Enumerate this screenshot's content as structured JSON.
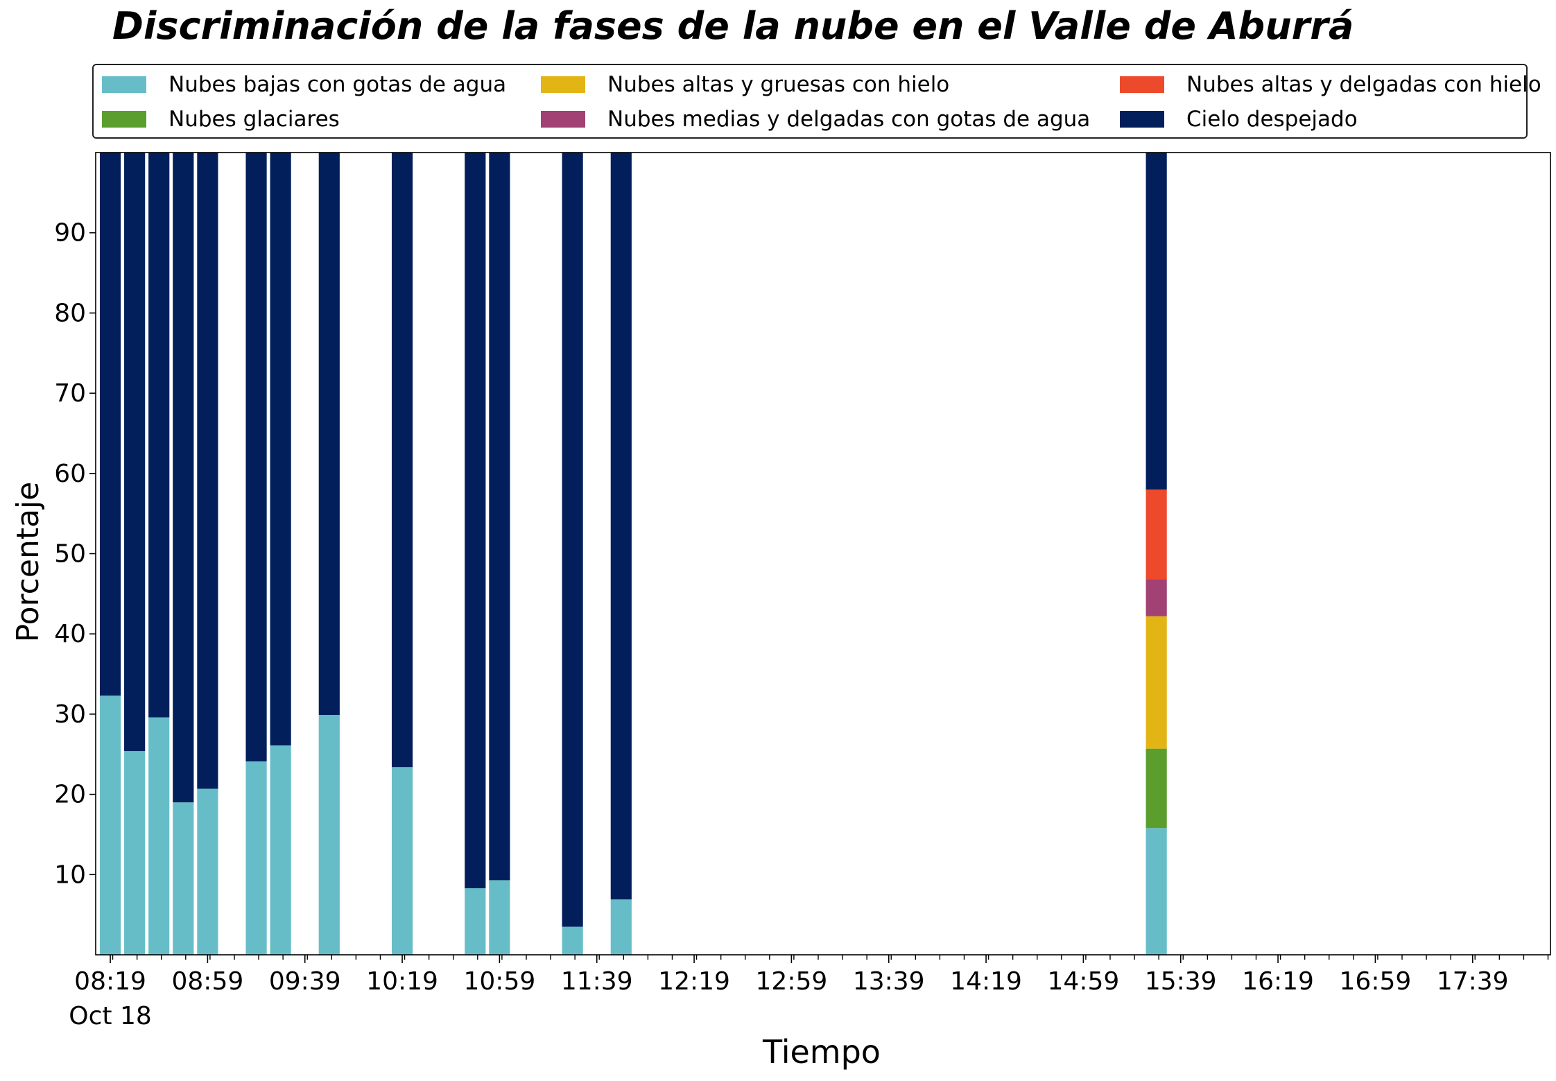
{
  "chart_data": {
    "type": "bar",
    "stacked": true,
    "title": "Discriminación de la fases de la nube en el Valle de Aburrá",
    "xlabel": "Tiempo",
    "ylabel": "Porcentaje",
    "ylim": [
      0,
      100
    ],
    "yticks": [
      10,
      20,
      30,
      40,
      50,
      60,
      70,
      80,
      90
    ],
    "x_range": [
      "08:13",
      "18:11"
    ],
    "x_tick_labels": [
      "08:19",
      "08:59",
      "09:39",
      "10:19",
      "10:59",
      "11:39",
      "12:19",
      "12:59",
      "13:39",
      "14:19",
      "14:59",
      "15:39",
      "16:19",
      "16:59",
      "17:39"
    ],
    "x_date_label": "Oct 18",
    "legend_position": "top",
    "grid": false,
    "x": [
      "08:19",
      "08:29",
      "08:39",
      "08:49",
      "08:59",
      "09:19",
      "09:29",
      "09:49",
      "10:19",
      "10:49",
      "10:59",
      "11:29",
      "11:49",
      "15:29"
    ],
    "series": [
      {
        "name": "Nubes bajas con gotas de agua",
        "color": "#66bdc8",
        "values": [
          32.3,
          25.4,
          29.6,
          19.0,
          20.7,
          24.1,
          26.1,
          29.9,
          23.4,
          8.3,
          9.3,
          3.5,
          6.9,
          15.8
        ]
      },
      {
        "name": "Nubes glaciares",
        "color": "#5c9e2e",
        "values": [
          0,
          0,
          0,
          0,
          0,
          0,
          0,
          0,
          0,
          0,
          0,
          0,
          0,
          9.9
        ]
      },
      {
        "name": "Nubes altas y gruesas con hielo",
        "color": "#e3b514",
        "values": [
          0,
          0,
          0,
          0,
          0,
          0,
          0,
          0,
          0,
          0,
          0,
          0,
          0,
          16.5
        ]
      },
      {
        "name": "Nubes medias y delgadas con gotas de agua",
        "color": "#a24174",
        "values": [
          0,
          0,
          0,
          0,
          0,
          0,
          0,
          0,
          0,
          0,
          0,
          0,
          0,
          4.6
        ]
      },
      {
        "name": "Nubes altas y delgadas con hielo",
        "color": "#ed4a2b",
        "values": [
          0,
          0,
          0,
          0,
          0,
          0,
          0,
          0,
          0,
          0,
          0,
          0,
          0,
          11.2
        ]
      },
      {
        "name": "Cielo despejado",
        "color": "#021f5c",
        "values": [
          67.7,
          74.6,
          70.4,
          81.0,
          79.3,
          75.9,
          73.9,
          70.1,
          76.6,
          91.7,
          90.7,
          96.5,
          93.1,
          42.0
        ]
      }
    ]
  }
}
